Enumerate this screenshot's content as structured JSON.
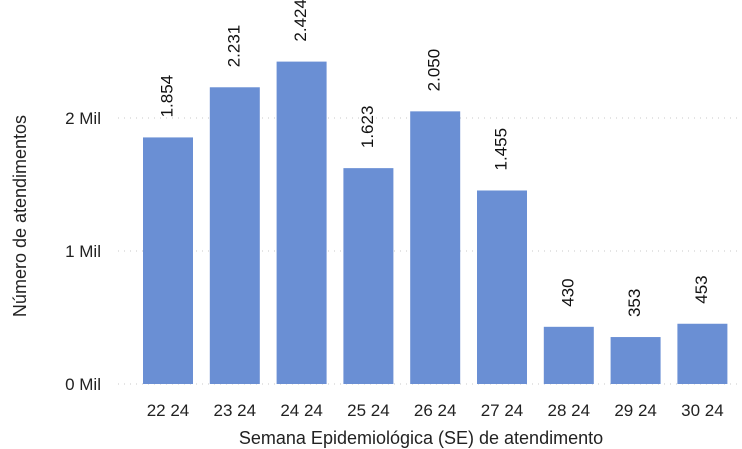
{
  "chart_data": {
    "type": "bar",
    "title": "",
    "xlabel": "Semana Epidemiológica (SE) de atendimento",
    "ylabel": "Número de atendimentos",
    "categories": [
      "22 24",
      "23 24",
      "24 24",
      "25 24",
      "26 24",
      "27 24",
      "28 24",
      "29 24",
      "30 24"
    ],
    "values": [
      1854,
      2231,
      2424,
      1623,
      2050,
      1455,
      430,
      353,
      453
    ],
    "data_labels": [
      "1.854",
      "2.231",
      "2.424",
      "1.623",
      "2.050",
      "1.455",
      "430",
      "353",
      "453"
    ],
    "yticks": [
      0,
      1000,
      2000
    ],
    "ytick_labels": [
      "0 Mil",
      "1 Mil",
      "2 Mil"
    ],
    "ylim": [
      0,
      2500
    ],
    "grid": true,
    "bar_color": "#6a8fd4",
    "grid_color": "#c9c9c9"
  }
}
